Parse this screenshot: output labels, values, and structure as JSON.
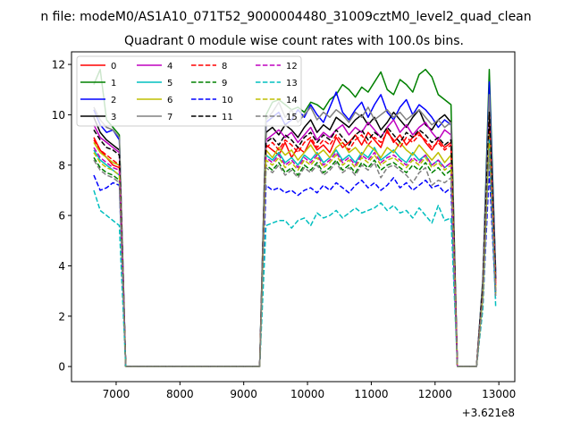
{
  "figure": {
    "suptitle": "n file: modeM0/AS1A10_071T52_9000004480_31009cztM0_level2_quad_clean",
    "title": "Quadrant 0 module wise count rates with 100.0s bins.",
    "offset_label": "+3.621e8"
  },
  "chart_data": {
    "type": "line",
    "title": "Quadrant 0 module wise count rates with 100.0s bins.",
    "xlabel": "",
    "ylabel": "",
    "x_offset": 362100000,
    "xlim": [
      6300,
      13250
    ],
    "ylim": [
      -0.6,
      12.5
    ],
    "x_ticks": [
      7000,
      8000,
      9000,
      10000,
      11000,
      12000,
      13000
    ],
    "y_ticks": [
      0,
      2,
      4,
      6,
      8,
      10,
      12
    ],
    "grid": false,
    "legend": {
      "placement": "upper-left",
      "columns": 4
    },
    "time_segments": [
      [
        6650,
        6750,
        6850,
        6950,
        7050,
        7150
      ],
      [
        9250,
        9350,
        9450,
        9550,
        9650,
        9750,
        9850,
        9950,
        10050,
        10150,
        10250,
        10350,
        10450,
        10550,
        10650,
        10750,
        10850,
        10950,
        11050,
        11150,
        11250,
        11350,
        11450,
        11550,
        11650,
        11750,
        11850,
        11950,
        12050,
        12150,
        12250,
        12350
      ],
      [
        12650,
        12750,
        12850,
        12950
      ]
    ],
    "gap_segments": [
      [
        7150,
        7250,
        7350,
        7450,
        7550,
        7650,
        7750,
        7850,
        7950,
        8050,
        8150,
        8250,
        8350,
        8450,
        8550,
        8650,
        8750,
        8850,
        8950,
        9050,
        9150,
        9250
      ],
      [
        12350,
        12450,
        12550,
        12650
      ]
    ],
    "series": [
      {
        "name": "0",
        "color": "#ff0000",
        "dash": false,
        "segments": [
          [
            9.1,
            8.6,
            8.3,
            8.0,
            7.9,
            0.0
          ],
          [
            0.0,
            8.8,
            8.6,
            8.4,
            8.9,
            8.3,
            8.7,
            8.5,
            9.0,
            8.6,
            8.8,
            8.5,
            9.1,
            8.7,
            8.9,
            9.2,
            8.8,
            9.3,
            9.0,
            8.7,
            9.4,
            8.9,
            9.2,
            8.8,
            9.1,
            9.3,
            8.9,
            8.6,
            9.0,
            8.7,
            8.9,
            0.0
          ],
          [
            0.0,
            3.0,
            9.9,
            3.2
          ]
        ]
      },
      {
        "name": "1",
        "color": "#008000",
        "dash": false,
        "segments": [
          [
            11.2,
            11.8,
            9.8,
            9.5,
            9.2,
            0.0
          ],
          [
            0.0,
            10.0,
            10.5,
            10.6,
            10.4,
            10.2,
            10.3,
            10.1,
            10.5,
            10.4,
            10.2,
            10.6,
            10.8,
            11.2,
            11.0,
            10.7,
            11.1,
            10.9,
            11.3,
            11.7,
            11.0,
            10.8,
            11.4,
            11.2,
            10.9,
            11.6,
            11.8,
            11.5,
            10.8,
            10.6,
            10.4,
            0.0
          ],
          [
            0.0,
            3.5,
            11.8,
            3.8
          ]
        ]
      },
      {
        "name": "2",
        "color": "#0000ff",
        "dash": false,
        "segments": [
          [
            10.2,
            9.6,
            9.3,
            9.4,
            9.0,
            0.0
          ],
          [
            0.0,
            9.7,
            9.9,
            10.1,
            9.6,
            9.8,
            10.2,
            9.9,
            10.4,
            10.0,
            9.7,
            10.3,
            10.9,
            10.1,
            9.8,
            10.2,
            10.5,
            9.9,
            10.4,
            10.8,
            10.1,
            9.8,
            10.3,
            10.6,
            10.0,
            10.4,
            10.2,
            9.9,
            9.5,
            9.8,
            9.6,
            0.0
          ],
          [
            0.0,
            3.4,
            11.3,
            3.7
          ]
        ]
      },
      {
        "name": "3",
        "color": "#000000",
        "dash": false,
        "segments": [
          [
            9.9,
            9.3,
            9.0,
            8.8,
            8.6,
            0.0
          ],
          [
            0.0,
            9.3,
            9.5,
            9.2,
            9.6,
            9.4,
            9.1,
            9.5,
            9.8,
            9.3,
            9.6,
            9.4,
            9.9,
            9.7,
            9.5,
            9.8,
            10.0,
            9.6,
            9.9,
            9.4,
            9.7,
            10.1,
            9.8,
            9.5,
            9.9,
            10.2,
            9.6,
            9.4,
            9.8,
            10.0,
            9.7,
            0.0
          ],
          [
            0.0,
            3.3,
            10.5,
            3.5
          ]
        ]
      },
      {
        "name": "4",
        "color": "#bf00bf",
        "dash": false,
        "segments": [
          [
            9.6,
            9.1,
            8.9,
            8.7,
            8.5,
            0.0
          ],
          [
            0.0,
            9.0,
            9.2,
            9.4,
            9.1,
            9.3,
            8.9,
            9.2,
            9.5,
            9.0,
            9.3,
            9.1,
            9.4,
            9.6,
            9.2,
            9.5,
            9.3,
            9.7,
            9.4,
            9.1,
            9.5,
            9.8,
            9.3,
            9.6,
            9.2,
            9.5,
            9.7,
            9.3,
            9.0,
            9.4,
            9.2,
            0.0
          ],
          [
            0.0,
            3.2,
            10.2,
            3.4
          ]
        ]
      },
      {
        "name": "5",
        "color": "#00bfbf",
        "dash": false,
        "segments": [
          [
            8.6,
            8.2,
            8.0,
            7.8,
            7.6,
            0.0
          ],
          [
            0.0,
            8.4,
            8.2,
            8.5,
            8.1,
            8.3,
            8.0,
            8.4,
            8.2,
            8.5,
            8.1,
            8.3,
            8.6,
            8.2,
            8.4,
            8.1,
            8.5,
            8.3,
            8.7,
            8.2,
            8.4,
            8.6,
            8.3,
            8.1,
            8.5,
            8.2,
            8.4,
            8.0,
            8.2,
            7.9,
            8.1,
            0.0
          ],
          [
            0.0,
            2.8,
            9.0,
            3.0
          ]
        ]
      },
      {
        "name": "6",
        "color": "#bfbf00",
        "dash": false,
        "segments": [
          [
            8.9,
            8.5,
            8.3,
            8.1,
            8.0,
            0.0
          ],
          [
            0.0,
            8.6,
            8.3,
            8.7,
            8.4,
            8.6,
            8.2,
            8.5,
            8.8,
            8.4,
            8.6,
            8.3,
            8.7,
            8.9,
            8.5,
            8.7,
            8.4,
            8.8,
            8.6,
            8.3,
            8.7,
            8.5,
            8.9,
            8.6,
            8.4,
            8.8,
            8.5,
            8.2,
            8.5,
            8.1,
            8.4,
            0.0
          ],
          [
            0.0,
            2.9,
            9.3,
            3.1
          ]
        ]
      },
      {
        "name": "7",
        "color": "#808080",
        "dash": false,
        "segments": [
          [
            10.3,
            9.8,
            9.5,
            9.4,
            9.1,
            0.0
          ],
          [
            0.0,
            9.8,
            10.1,
            10.5,
            9.9,
            10.2,
            9.7,
            10.0,
            10.3,
            9.8,
            10.1,
            9.9,
            10.2,
            10.0,
            9.7,
            10.1,
            9.9,
            10.3,
            9.8,
            10.0,
            10.2,
            9.9,
            10.1,
            9.8,
            10.0,
            10.2,
            9.9,
            9.6,
            9.8,
            9.5,
            9.7,
            0.0
          ],
          [
            0.0,
            3.4,
            10.8,
            3.6
          ]
        ]
      },
      {
        "name": "8",
        "color": "#ff0000",
        "dash": true,
        "segments": [
          [
            9.0,
            8.6,
            8.4,
            8.2,
            8.0,
            0.0
          ],
          [
            0.0,
            8.7,
            8.9,
            8.6,
            9.0,
            8.8,
            8.5,
            8.9,
            9.1,
            8.7,
            9.0,
            8.8,
            9.2,
            8.9,
            8.6,
            9.0,
            9.2,
            8.8,
            9.1,
            8.9,
            9.3,
            9.0,
            8.7,
            9.1,
            8.9,
            9.2,
            9.0,
            8.7,
            8.9,
            8.6,
            8.8,
            0.0
          ],
          [
            0.0,
            3.1,
            10.0,
            3.3
          ]
        ]
      },
      {
        "name": "9",
        "color": "#008000",
        "dash": true,
        "segments": [
          [
            8.3,
            7.9,
            7.7,
            7.6,
            7.4,
            0.0
          ],
          [
            0.0,
            8.0,
            7.8,
            8.1,
            7.7,
            7.9,
            7.6,
            8.0,
            7.8,
            8.1,
            7.7,
            7.9,
            8.2,
            7.8,
            8.0,
            7.7,
            8.1,
            7.9,
            8.2,
            7.8,
            8.0,
            8.1,
            7.9,
            7.7,
            8.0,
            7.8,
            8.1,
            7.7,
            7.9,
            7.6,
            7.8,
            0.0
          ],
          [
            0.0,
            2.7,
            8.7,
            2.9
          ]
        ]
      },
      {
        "name": "10",
        "color": "#0000ff",
        "dash": true,
        "segments": [
          [
            7.6,
            7.0,
            7.1,
            7.3,
            7.2,
            0.0
          ],
          [
            0.0,
            7.2,
            7.0,
            7.1,
            6.9,
            7.0,
            6.8,
            7.0,
            7.1,
            6.9,
            7.2,
            7.0,
            7.3,
            7.1,
            6.9,
            7.2,
            7.4,
            7.1,
            7.3,
            7.0,
            7.2,
            7.5,
            7.1,
            7.3,
            7.0,
            7.2,
            7.4,
            7.1,
            7.2,
            6.9,
            7.1,
            0.0
          ],
          [
            0.0,
            2.5,
            7.8,
            2.7
          ]
        ]
      },
      {
        "name": "11",
        "color": "#000000",
        "dash": true,
        "segments": [
          [
            9.4,
            9.0,
            8.7,
            8.6,
            8.4,
            0.0
          ],
          [
            0.0,
            8.9,
            9.1,
            8.8,
            9.2,
            9.0,
            8.7,
            9.1,
            9.3,
            8.9,
            9.2,
            9.0,
            9.4,
            9.1,
            8.8,
            9.2,
            9.4,
            9.0,
            9.3,
            9.1,
            9.5,
            9.2,
            8.9,
            9.3,
            9.1,
            9.4,
            9.2,
            8.9,
            9.1,
            8.8,
            9.0,
            0.0
          ],
          [
            0.0,
            3.2,
            10.1,
            3.4
          ]
        ]
      },
      {
        "name": "12",
        "color": "#bf00bf",
        "dash": true,
        "segments": [
          [
            8.7,
            8.3,
            8.1,
            7.9,
            7.8,
            0.0
          ],
          [
            0.0,
            8.3,
            8.1,
            8.4,
            8.0,
            8.2,
            7.9,
            8.3,
            8.1,
            8.4,
            8.0,
            8.2,
            8.5,
            8.1,
            8.3,
            8.0,
            8.4,
            8.2,
            8.5,
            8.1,
            8.3,
            8.4,
            8.2,
            8.0,
            8.3,
            8.1,
            8.4,
            8.0,
            8.2,
            7.9,
            8.1,
            0.0
          ],
          [
            0.0,
            2.8,
            9.0,
            3.0
          ]
        ]
      },
      {
        "name": "13",
        "color": "#00bfbf",
        "dash": true,
        "segments": [
          [
            7.0,
            6.2,
            6.0,
            5.8,
            5.6,
            0.0
          ],
          [
            0.0,
            5.6,
            5.7,
            5.8,
            5.8,
            5.5,
            5.8,
            5.9,
            5.6,
            6.1,
            5.9,
            6.0,
            6.2,
            5.9,
            6.1,
            6.3,
            6.1,
            6.2,
            6.3,
            6.5,
            6.2,
            6.4,
            6.1,
            6.2,
            5.9,
            6.3,
            6.0,
            5.7,
            6.4,
            5.8,
            5.9,
            0.0
          ],
          [
            0.0,
            2.3,
            9.0,
            2.4
          ]
        ]
      },
      {
        "name": "14",
        "color": "#bfbf00",
        "dash": true,
        "segments": [
          [
            8.5,
            8.1,
            7.9,
            7.8,
            7.6,
            0.0
          ],
          [
            0.0,
            8.2,
            8.0,
            8.3,
            7.9,
            8.1,
            7.8,
            8.2,
            8.0,
            8.3,
            7.9,
            8.1,
            8.4,
            8.0,
            8.2,
            7.9,
            8.3,
            8.1,
            8.4,
            8.0,
            8.2,
            8.3,
            8.1,
            7.9,
            8.2,
            8.0,
            8.3,
            7.9,
            8.1,
            7.8,
            8.0,
            0.0
          ],
          [
            0.0,
            2.7,
            8.9,
            2.9
          ]
        ]
      },
      {
        "name": "15",
        "color": "#808080",
        "dash": true,
        "segments": [
          [
            8.2,
            7.8,
            7.6,
            7.5,
            7.3,
            0.0
          ],
          [
            0.0,
            7.9,
            7.7,
            8.0,
            7.6,
            7.8,
            7.5,
            7.9,
            7.7,
            8.0,
            7.6,
            7.8,
            8.1,
            7.7,
            7.9,
            7.6,
            8.0,
            7.8,
            8.1,
            7.5,
            7.9,
            8.0,
            7.8,
            7.6,
            7.3,
            7.7,
            7.9,
            7.2,
            7.4,
            7.3,
            7.5,
            0.0
          ],
          [
            0.0,
            2.6,
            8.6,
            2.8
          ]
        ]
      }
    ]
  }
}
